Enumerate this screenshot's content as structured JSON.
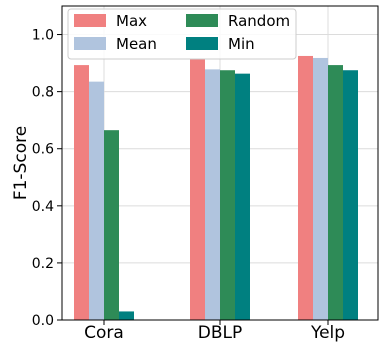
{
  "chart_data": {
    "type": "bar",
    "title": "",
    "xlabel": "",
    "ylabel": "F1-Score",
    "categories": [
      "Cora",
      "DBLP",
      "Yelp"
    ],
    "series": [
      {
        "name": "Max",
        "color": "#f08080",
        "values": [
          0.893,
          0.913,
          0.925
        ]
      },
      {
        "name": "Mean",
        "color": "#b0c4de",
        "values": [
          0.835,
          0.878,
          0.918
        ]
      },
      {
        "name": "Random",
        "color": "#2e8b57",
        "values": [
          0.665,
          0.875,
          0.893
        ]
      },
      {
        "name": "Min",
        "color": "#008080",
        "values": [
          0.03,
          0.863,
          0.875
        ]
      }
    ],
    "ylim": [
      0,
      1.1
    ],
    "yticks": [
      0.0,
      0.2,
      0.4,
      0.6,
      0.8,
      1.0
    ],
    "ytick_labels": [
      "0.0",
      "0.2",
      "0.4",
      "0.6",
      "0.8",
      "1.0"
    ],
    "grid": true,
    "legend": {
      "placement": "top-left",
      "columns": 2
    }
  }
}
